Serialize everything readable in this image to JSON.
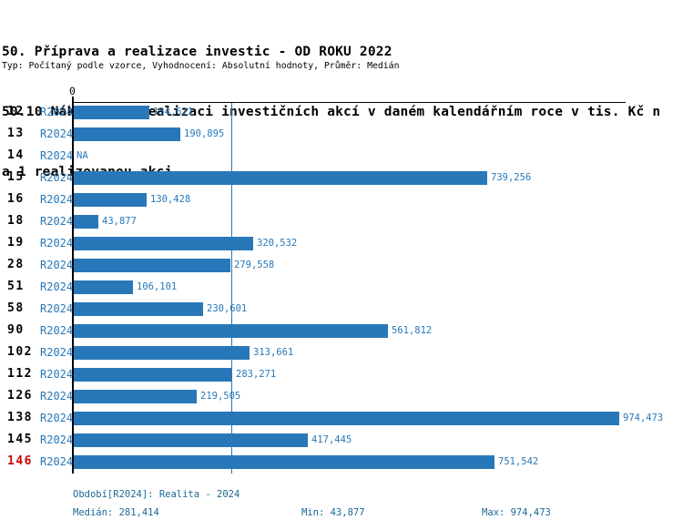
{
  "header": {
    "title_line1": "50. Příprava a realizace investic - OD ROKU 2022",
    "title_line2": "50.10 Náklady na realizaci investičních akcí v daném kalendářním roce v tis. Kč n",
    "title_line3": "a 1 realizovanou akci",
    "meta": "Typ: Počítaný podle vzorce, Vyhodnocení: Absolutní hodnoty, Průměr: Medián"
  },
  "chart_data": {
    "type": "bar",
    "orientation": "horizontal",
    "title": "50.10 Náklady na realizaci investičních akcí v daném kalendářním roce v tis. Kč na 1 realizovanou akci",
    "axis_zero_label": "0",
    "xlim": [
      0,
      974473
    ],
    "grid": false,
    "median_value": 281414,
    "max_value": 974473,
    "min_value": 43877,
    "series_period": "R2024",
    "categories": [
      "12",
      "13",
      "14",
      "15",
      "16",
      "18",
      "19",
      "28",
      "51",
      "58",
      "90",
      "102",
      "112",
      "126",
      "138",
      "145",
      "146"
    ],
    "rows": [
      {
        "id": "12",
        "period": "R2024",
        "value": 134621,
        "label": "134,621"
      },
      {
        "id": "13",
        "period": "R2024",
        "value": 190895,
        "label": "190,895"
      },
      {
        "id": "14",
        "period": "R2024",
        "value": null,
        "label": "NA"
      },
      {
        "id": "15",
        "period": "R2024",
        "value": 739256,
        "label": "739,256"
      },
      {
        "id": "16",
        "period": "R2024",
        "value": 130428,
        "label": "130,428"
      },
      {
        "id": "18",
        "period": "R2024",
        "value": 43877,
        "label": "43,877"
      },
      {
        "id": "19",
        "period": "R2024",
        "value": 320532,
        "label": "320,532"
      },
      {
        "id": "28",
        "period": "R2024",
        "value": 279558,
        "label": "279,558"
      },
      {
        "id": "51",
        "period": "R2024",
        "value": 106101,
        "label": "106,101"
      },
      {
        "id": "58",
        "period": "R2024",
        "value": 230601,
        "label": "230,601"
      },
      {
        "id": "90",
        "period": "R2024",
        "value": 561812,
        "label": "561,812"
      },
      {
        "id": "102",
        "period": "R2024",
        "value": 313661,
        "label": "313,661"
      },
      {
        "id": "112",
        "period": "R2024",
        "value": 283271,
        "label": "283,271"
      },
      {
        "id": "126",
        "period": "R2024",
        "value": 219505,
        "label": "219,505"
      },
      {
        "id": "138",
        "period": "R2024",
        "value": 974473,
        "label": "974,473"
      },
      {
        "id": "145",
        "period": "R2024",
        "value": 417445,
        "label": "417,445"
      },
      {
        "id": "146",
        "period": "R2024",
        "value": 751542,
        "label": "751,542",
        "highlight": true
      }
    ]
  },
  "footer": {
    "period_info": "Období[R2024]: Realita - 2024",
    "median": "Medián: 281,414",
    "min": "Min: 43,877",
    "max": "Max: 974,473"
  },
  "colors": {
    "bar_blue": "#2878b9",
    "footer_blue": "#1b6a96",
    "highlight_red": "#cc0000",
    "axis_black": "#000000"
  }
}
